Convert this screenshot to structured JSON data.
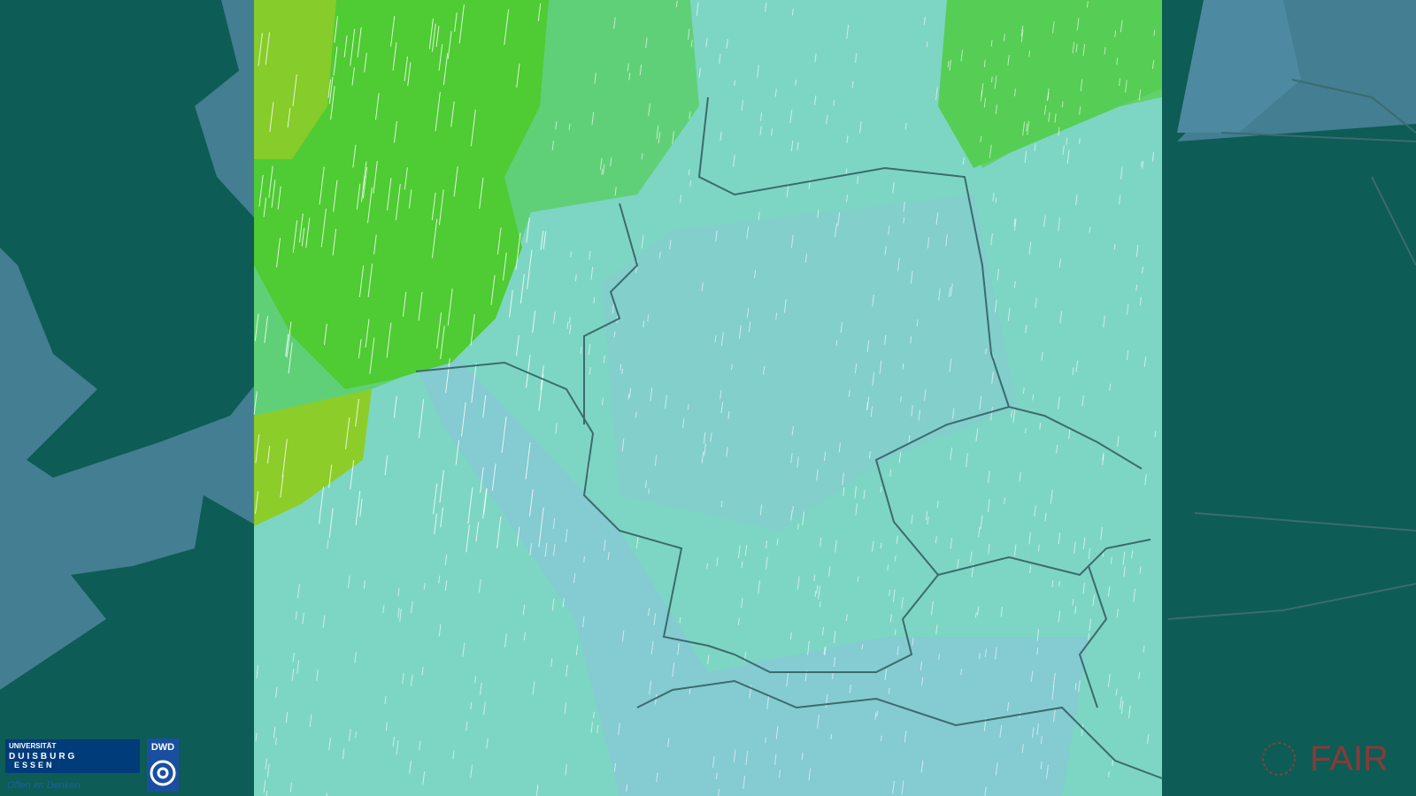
{
  "logos": {
    "university": {
      "line1": "UNIVERSITÄT",
      "line2": "DUISBURG",
      "line3": "ESSEN",
      "slogan": "Offen im Denken"
    },
    "dwd": "DWD",
    "fair": "FAIR"
  }
}
